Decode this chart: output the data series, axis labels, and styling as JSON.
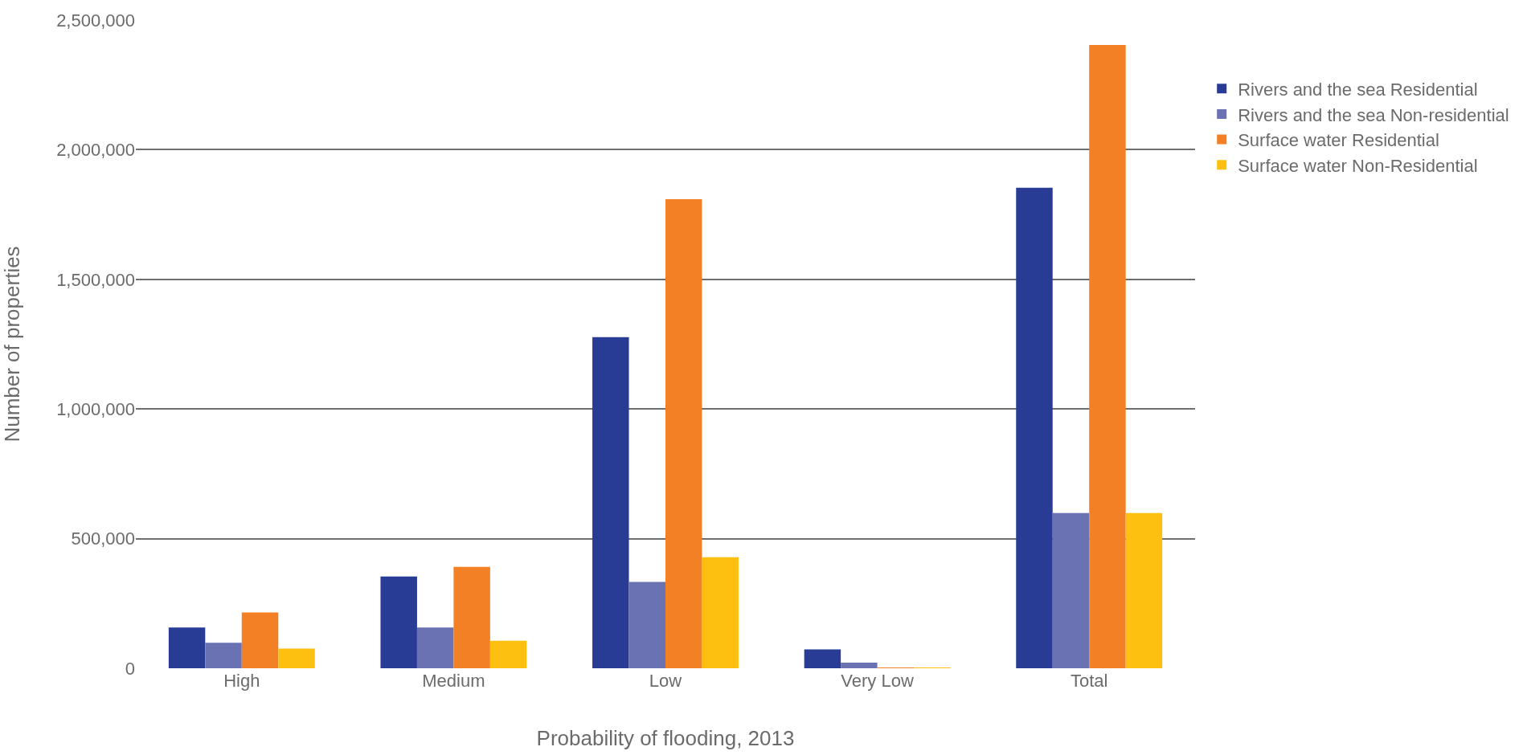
{
  "chart_data": {
    "type": "bar",
    "xlabel": "Probability of flooding, 2013",
    "ylabel": "Number of properties",
    "categories": [
      "High",
      "Medium",
      "Low",
      "Very Low",
      "Total"
    ],
    "series": [
      {
        "name": "Rivers and the sea Residential",
        "color": "#283c96",
        "values": [
          157000,
          354000,
          1277000,
          73000,
          1853000
        ]
      },
      {
        "name": "Rivers and the sea Non-residential",
        "color": "#6b72b4",
        "values": [
          98000,
          157000,
          333000,
          22000,
          599000
        ]
      },
      {
        "name": "Surface water Residential",
        "color": "#f38025",
        "values": [
          215000,
          391000,
          1809000,
          3000,
          2404000
        ]
      },
      {
        "name": "Surface water Non-Residential",
        "color": "#fdc010",
        "values": [
          76000,
          106000,
          428000,
          3000,
          599000
        ]
      }
    ],
    "ylim": [
      0,
      2500000
    ],
    "yticks": [
      {
        "value": 0,
        "label": "0"
      },
      {
        "value": 500000,
        "label": "500,000"
      },
      {
        "value": 1000000,
        "label": "1,000,000"
      },
      {
        "value": 1500000,
        "label": "1,500,000"
      },
      {
        "value": 2000000,
        "label": "2,000,000"
      },
      {
        "value": 2500000,
        "label": "2,500,000"
      }
    ],
    "grid": "y",
    "legend": "right"
  }
}
